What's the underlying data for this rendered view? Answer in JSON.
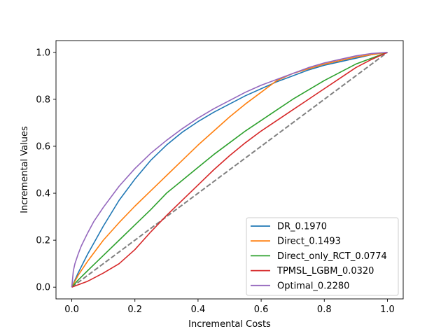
{
  "chart_data": {
    "type": "line",
    "title": "",
    "xlabel": "Incremental Costs",
    "ylabel": "Incremental Values",
    "xlim": [
      -0.05,
      1.05
    ],
    "ylim": [
      -0.05,
      1.05
    ],
    "xticks": [
      "0.0",
      "0.2",
      "0.4",
      "0.6",
      "0.8",
      "1.0"
    ],
    "yticks": [
      "0.0",
      "0.2",
      "0.4",
      "0.6",
      "0.8",
      "1.0"
    ],
    "grid": false,
    "legend_position": "lower-right",
    "series": [
      {
        "name": "DR_0.1970",
        "color": "#1f77b4",
        "x": [
          0,
          0.02,
          0.05,
          0.1,
          0.15,
          0.2,
          0.25,
          0.3,
          0.35,
          0.4,
          0.45,
          0.5,
          0.55,
          0.6,
          0.65,
          0.7,
          0.75,
          0.8,
          0.85,
          0.9,
          0.95,
          1.0
        ],
        "y": [
          0,
          0.06,
          0.14,
          0.26,
          0.37,
          0.46,
          0.54,
          0.605,
          0.66,
          0.705,
          0.745,
          0.78,
          0.815,
          0.845,
          0.875,
          0.9,
          0.925,
          0.945,
          0.96,
          0.975,
          0.99,
          1.0
        ]
      },
      {
        "name": "Direct_0.1493",
        "color": "#ff7f0e",
        "x": [
          0,
          0.02,
          0.05,
          0.1,
          0.15,
          0.2,
          0.25,
          0.3,
          0.35,
          0.4,
          0.45,
          0.5,
          0.55,
          0.6,
          0.65,
          0.7,
          0.75,
          0.8,
          0.85,
          0.9,
          0.95,
          1.0
        ],
        "y": [
          0,
          0.05,
          0.11,
          0.2,
          0.275,
          0.345,
          0.41,
          0.475,
          0.54,
          0.605,
          0.665,
          0.725,
          0.78,
          0.83,
          0.88,
          0.91,
          0.93,
          0.95,
          0.965,
          0.98,
          0.99,
          1.0
        ]
      },
      {
        "name": "Direct_only_RCT_0.0774",
        "color": "#2ca02c",
        "x": [
          0,
          0.02,
          0.05,
          0.1,
          0.15,
          0.2,
          0.25,
          0.3,
          0.35,
          0.4,
          0.45,
          0.5,
          0.55,
          0.6,
          0.65,
          0.7,
          0.75,
          0.8,
          0.85,
          0.9,
          0.95,
          1.0
        ],
        "y": [
          0,
          0.03,
          0.07,
          0.135,
          0.2,
          0.265,
          0.33,
          0.4,
          0.455,
          0.51,
          0.565,
          0.615,
          0.665,
          0.71,
          0.755,
          0.8,
          0.84,
          0.88,
          0.915,
          0.95,
          0.975,
          1.0
        ]
      },
      {
        "name": "TPMSL_LGBM_0.0320",
        "color": "#d62728",
        "x": [
          0,
          0.02,
          0.05,
          0.1,
          0.15,
          0.2,
          0.25,
          0.3,
          0.35,
          0.4,
          0.45,
          0.5,
          0.55,
          0.6,
          0.65,
          0.7,
          0.75,
          0.8,
          0.85,
          0.9,
          0.95,
          1.0
        ],
        "y": [
          0,
          0.01,
          0.025,
          0.06,
          0.1,
          0.16,
          0.235,
          0.305,
          0.37,
          0.435,
          0.5,
          0.56,
          0.615,
          0.665,
          0.71,
          0.755,
          0.8,
          0.845,
          0.89,
          0.935,
          0.97,
          1.0
        ]
      },
      {
        "name": "Optimal_0.2280",
        "color": "#9467bd",
        "x": [
          0,
          0.005,
          0.01,
          0.02,
          0.03,
          0.05,
          0.07,
          0.1,
          0.15,
          0.2,
          0.25,
          0.3,
          0.35,
          0.4,
          0.45,
          0.5,
          0.55,
          0.6,
          0.65,
          0.7,
          0.75,
          0.8,
          0.85,
          0.9,
          0.95,
          1.0
        ],
        "y": [
          0,
          0.07,
          0.1,
          0.14,
          0.175,
          0.23,
          0.28,
          0.34,
          0.43,
          0.505,
          0.57,
          0.625,
          0.675,
          0.72,
          0.76,
          0.795,
          0.83,
          0.86,
          0.885,
          0.91,
          0.935,
          0.955,
          0.97,
          0.985,
          0.995,
          1.0
        ]
      }
    ],
    "reference_line": {
      "color": "#808080",
      "style": "dashed",
      "x": [
        0,
        1
      ],
      "y": [
        0,
        1
      ]
    }
  }
}
